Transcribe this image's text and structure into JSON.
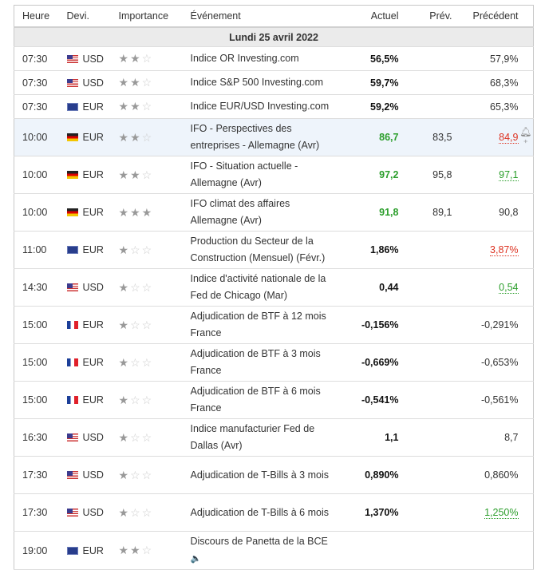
{
  "headers": {
    "time": "Heure",
    "currency": "Devi.",
    "importance": "Importance",
    "event": "Événement",
    "actual": "Actuel",
    "forecast": "Prév.",
    "previous": "Précédent"
  },
  "date": "Lundi 25 avril 2022",
  "rows": [
    {
      "time": "07:30",
      "flag": "us",
      "cur": "USD",
      "stars": 2,
      "event": "Indice OR Investing.com",
      "actual": "56,5%",
      "actual_color": "",
      "forecast": "",
      "previous": "57,9%",
      "prev_color": ""
    },
    {
      "time": "07:30",
      "flag": "us",
      "cur": "USD",
      "stars": 2,
      "event": "Indice S&P 500 Investing.com",
      "actual": "59,7%",
      "actual_color": "",
      "forecast": "",
      "previous": "68,3%",
      "prev_color": ""
    },
    {
      "time": "07:30",
      "flag": "eu",
      "cur": "EUR",
      "stars": 2,
      "event": "Indice EUR/USD Investing.com",
      "actual": "59,2%",
      "actual_color": "",
      "forecast": "",
      "previous": "65,3%",
      "prev_color": ""
    },
    {
      "time": "10:00",
      "flag": "de",
      "cur": "EUR",
      "stars": 2,
      "event": "IFO - Perspectives des entreprises - Allemagne (Avr)",
      "actual": "86,7",
      "actual_color": "green",
      "forecast": "83,5",
      "previous": "84,9",
      "prev_color": "red",
      "highlight": true,
      "bell": true
    },
    {
      "time": "10:00",
      "flag": "de",
      "cur": "EUR",
      "stars": 2,
      "event": "IFO - Situation actuelle - Allemagne (Avr)",
      "actual": "97,2",
      "actual_color": "green",
      "forecast": "95,8",
      "previous": "97,1",
      "prev_color": "green"
    },
    {
      "time": "10:00",
      "flag": "de",
      "cur": "EUR",
      "stars": 3,
      "event": "IFO climat des affaires Allemagne (Avr)",
      "actual": "91,8",
      "actual_color": "green",
      "forecast": "89,1",
      "previous": "90,8",
      "prev_color": ""
    },
    {
      "time": "11:00",
      "flag": "eu",
      "cur": "EUR",
      "stars": 1,
      "event": "Production du Secteur de la Construction (Mensuel) (Févr.)",
      "actual": "1,86%",
      "actual_color": "",
      "forecast": "",
      "previous": "3,87%",
      "prev_color": "red"
    },
    {
      "time": "14:30",
      "flag": "us",
      "cur": "USD",
      "stars": 1,
      "event": "Indice d'activité nationale de la Fed de Chicago (Mar)",
      "actual": "0,44",
      "actual_color": "",
      "forecast": "",
      "previous": "0,54",
      "prev_color": "green"
    },
    {
      "time": "15:00",
      "flag": "fr",
      "cur": "EUR",
      "stars": 1,
      "event": "Adjudication de BTF à 12 mois France",
      "actual": "-0,156%",
      "actual_color": "",
      "forecast": "",
      "previous": "-0,291%",
      "prev_color": ""
    },
    {
      "time": "15:00",
      "flag": "fr",
      "cur": "EUR",
      "stars": 1,
      "event": "Adjudication de BTF à 3 mois France",
      "actual": "-0,669%",
      "actual_color": "",
      "forecast": "",
      "previous": "-0,653%",
      "prev_color": ""
    },
    {
      "time": "15:00",
      "flag": "fr",
      "cur": "EUR",
      "stars": 1,
      "event": "Adjudication de BTF à 6 mois France",
      "actual": "-0,541%",
      "actual_color": "",
      "forecast": "",
      "previous": "-0,561%",
      "prev_color": ""
    },
    {
      "time": "16:30",
      "flag": "us",
      "cur": "USD",
      "stars": 1,
      "event": "Indice manufacturier Fed de Dallas (Avr)",
      "actual": "1,1",
      "actual_color": "",
      "forecast": "",
      "previous": "8,7",
      "prev_color": ""
    },
    {
      "time": "17:30",
      "flag": "us",
      "cur": "USD",
      "stars": 1,
      "event": "Adjudication de T-Bills à 3 mois",
      "actual": "0,890%",
      "actual_color": "",
      "forecast": "",
      "previous": "0,860%",
      "prev_color": ""
    },
    {
      "time": "17:30",
      "flag": "us",
      "cur": "USD",
      "stars": 1,
      "event": "Adjudication de T-Bills à 6 mois",
      "actual": "1,370%",
      "actual_color": "",
      "forecast": "",
      "previous": "1,250%",
      "prev_color": "green"
    },
    {
      "time": "19:00",
      "flag": "eu",
      "cur": "EUR",
      "stars": 2,
      "event": "Discours de Panetta de la BCE",
      "actual": "",
      "actual_color": "",
      "forecast": "",
      "previous": "",
      "prev_color": "",
      "speech": true
    }
  ]
}
